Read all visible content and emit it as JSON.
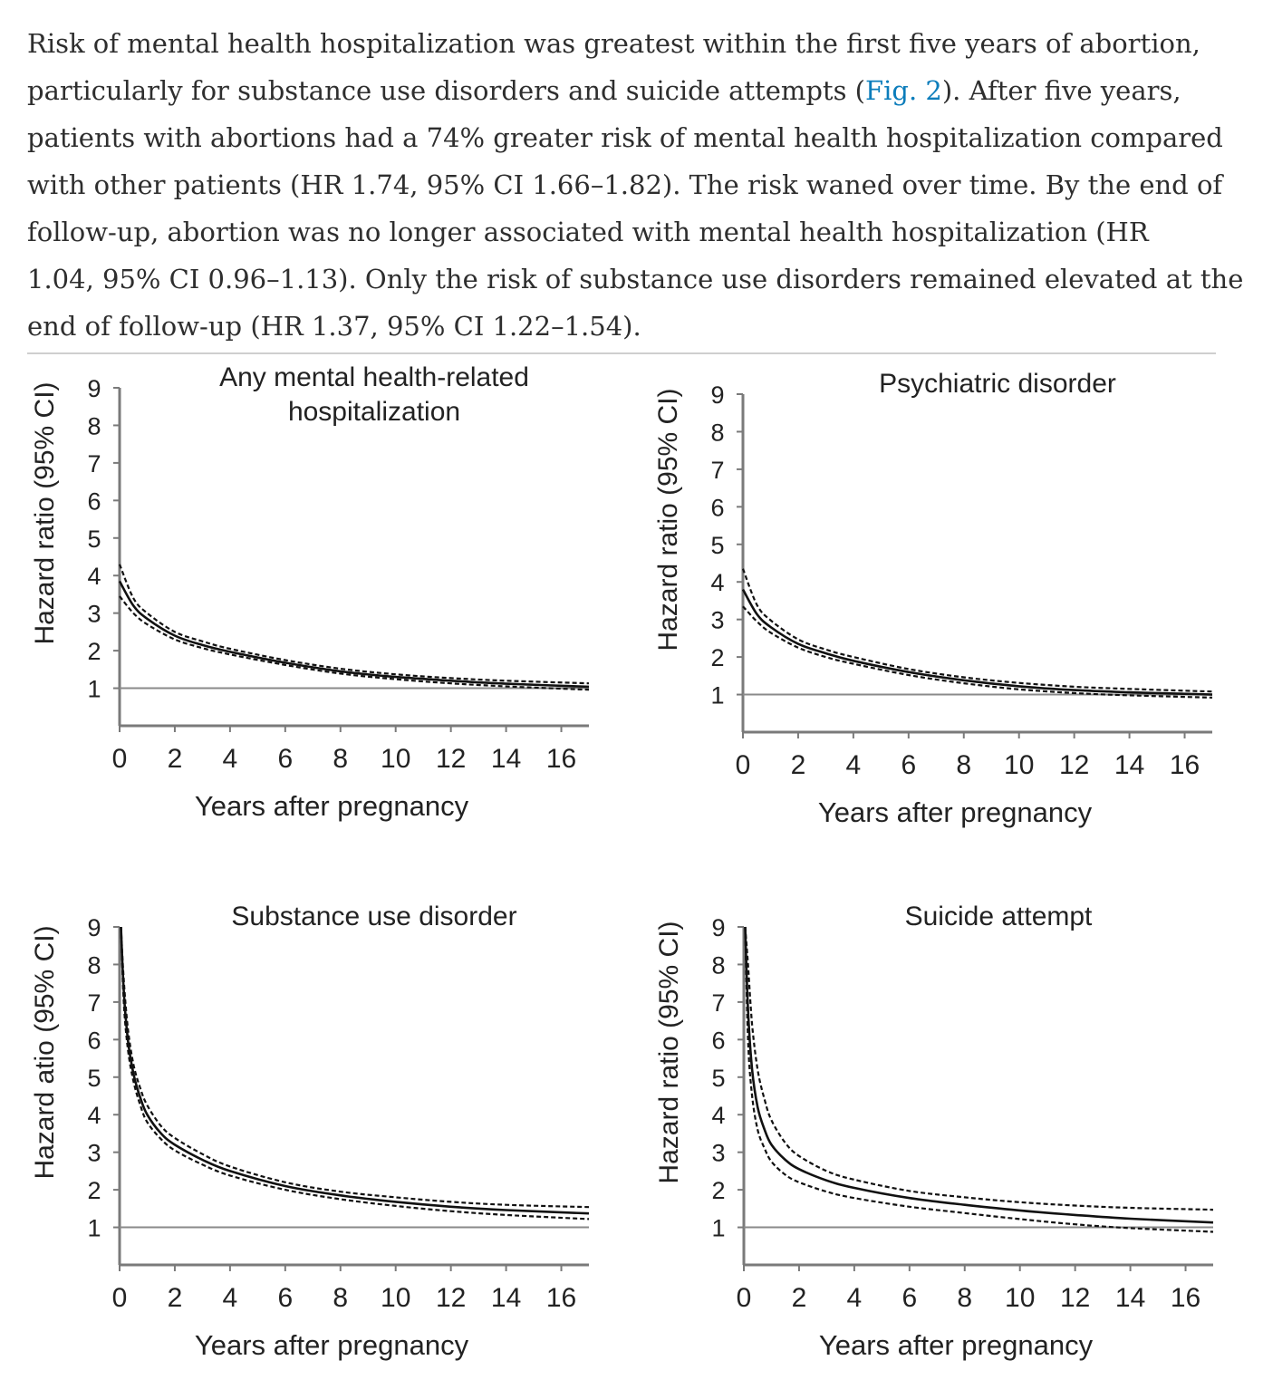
{
  "article": {
    "paragraph_lines": [
      "Risk of mental health hospitalization was greatest within the first five years of abortion,",
      "particularly for substance use disorders and suicide attempts (",
      "). After five years,",
      "patients with abortions had a 74% greater risk of mental health hospitalization compared",
      "with other patients (HR 1.74, 95% CI 1.66–1.82). The risk waned over time. By the end of",
      "follow-up, abortion was no longer associated with mental health hospitalization (HR",
      "1.04, 95% CI 0.96–1.13). Only the risk of substance use disorders remained elevated at the",
      "end of follow-up (HR 1.37, 95% CI 1.22–1.54)."
    ],
    "fig_link": "Fig. 2"
  },
  "chart_data": [
    {
      "type": "line",
      "title": "Any mental health-related hospitalization",
      "title_lines": [
        "Any mental health-related",
        "hospitalization"
      ],
      "xlabel": "Years after pregnancy",
      "ylabel": "Hazard ratio (95% CI)",
      "xlim": [
        0,
        17
      ],
      "ylim": [
        0,
        9
      ],
      "xticks": [
        0,
        2,
        4,
        6,
        8,
        10,
        12,
        14,
        16
      ],
      "yticks": [
        1,
        2,
        3,
        4,
        5,
        6,
        7,
        8,
        9
      ],
      "reference_line": 1,
      "series": [
        {
          "name": "HR",
          "style": "solid",
          "x": [
            0,
            0.5,
            1,
            2,
            3,
            4,
            6,
            8,
            10,
            12,
            14,
            17
          ],
          "y": [
            3.85,
            3.2,
            2.85,
            2.4,
            2.15,
            1.97,
            1.68,
            1.45,
            1.3,
            1.2,
            1.12,
            1.04
          ]
        },
        {
          "name": "Upper 95% CI",
          "style": "dashed",
          "x": [
            0,
            0.5,
            1,
            2,
            3,
            4,
            6,
            8,
            10,
            12,
            14,
            17
          ],
          "y": [
            4.3,
            3.4,
            3.0,
            2.5,
            2.25,
            2.05,
            1.75,
            1.52,
            1.37,
            1.27,
            1.2,
            1.13
          ]
        },
        {
          "name": "Lower 95% CI",
          "style": "dashed",
          "x": [
            0,
            0.5,
            1,
            2,
            3,
            4,
            6,
            8,
            10,
            12,
            14,
            17
          ],
          "y": [
            3.45,
            3.0,
            2.7,
            2.3,
            2.07,
            1.9,
            1.62,
            1.39,
            1.24,
            1.13,
            1.05,
            0.96
          ]
        }
      ]
    },
    {
      "type": "line",
      "title": "Psychiatric disorder",
      "title_lines": [
        "Psychiatric disorder"
      ],
      "xlabel": "Years after pregnancy",
      "ylabel": "Hazard ratio (95% CI)",
      "xlim": [
        0,
        17
      ],
      "ylim": [
        0,
        9
      ],
      "xticks": [
        0,
        2,
        4,
        6,
        8,
        10,
        12,
        14,
        16
      ],
      "yticks": [
        1,
        2,
        3,
        4,
        5,
        6,
        7,
        8,
        9
      ],
      "reference_line": 1,
      "series": [
        {
          "name": "HR",
          "style": "solid",
          "x": [
            0,
            0.5,
            1,
            2,
            3,
            4,
            6,
            8,
            10,
            12,
            14,
            17
          ],
          "y": [
            3.8,
            3.15,
            2.8,
            2.35,
            2.1,
            1.9,
            1.6,
            1.38,
            1.22,
            1.12,
            1.06,
            1.0
          ]
        },
        {
          "name": "Upper 95% CI",
          "style": "dashed",
          "x": [
            0,
            0.5,
            1,
            2,
            3,
            4,
            6,
            8,
            10,
            12,
            14,
            17
          ],
          "y": [
            4.35,
            3.4,
            2.98,
            2.47,
            2.2,
            2.0,
            1.68,
            1.46,
            1.31,
            1.21,
            1.15,
            1.08
          ]
        },
        {
          "name": "Lower 95% CI",
          "style": "dashed",
          "x": [
            0,
            0.5,
            1,
            2,
            3,
            4,
            6,
            8,
            10,
            12,
            14,
            17
          ],
          "y": [
            3.35,
            2.95,
            2.65,
            2.25,
            2.0,
            1.82,
            1.52,
            1.3,
            1.14,
            1.04,
            0.98,
            0.92
          ]
        }
      ]
    },
    {
      "type": "line",
      "title": "Substance use disorder",
      "title_lines": [
        "Substance use disorder"
      ],
      "xlabel": "Years after pregnancy",
      "ylabel": "Hazard atio (95% CI)",
      "xlim": [
        0,
        17
      ],
      "ylim": [
        0,
        9
      ],
      "xticks": [
        0,
        2,
        4,
        6,
        8,
        10,
        12,
        14,
        16
      ],
      "yticks": [
        1,
        2,
        3,
        4,
        5,
        6,
        7,
        8,
        9
      ],
      "reference_line": 1,
      "series": [
        {
          "name": "HR",
          "style": "solid",
          "x": [
            0.05,
            0.15,
            0.3,
            0.5,
            0.75,
            1,
            1.5,
            2,
            3,
            4,
            6,
            8,
            10,
            12,
            14,
            17
          ],
          "y": [
            9,
            7.3,
            6.0,
            5.1,
            4.45,
            4.0,
            3.5,
            3.2,
            2.8,
            2.5,
            2.1,
            1.85,
            1.68,
            1.55,
            1.46,
            1.37
          ]
        },
        {
          "name": "Upper 95% CI",
          "style": "dashed",
          "x": [
            0.05,
            0.15,
            0.3,
            0.5,
            0.75,
            1,
            1.5,
            2,
            3,
            4,
            6,
            8,
            10,
            12,
            14,
            17
          ],
          "y": [
            9,
            7.6,
            6.3,
            5.35,
            4.7,
            4.25,
            3.7,
            3.38,
            2.95,
            2.62,
            2.2,
            1.95,
            1.8,
            1.68,
            1.6,
            1.54
          ]
        },
        {
          "name": "Lower 95% CI",
          "style": "dashed",
          "x": [
            0.05,
            0.15,
            0.3,
            0.5,
            0.75,
            1,
            1.5,
            2,
            3,
            4,
            6,
            8,
            10,
            12,
            14,
            17
          ],
          "y": [
            9,
            7.0,
            5.75,
            4.9,
            4.25,
            3.8,
            3.35,
            3.05,
            2.67,
            2.38,
            2.0,
            1.75,
            1.57,
            1.43,
            1.33,
            1.22
          ]
        }
      ]
    },
    {
      "type": "line",
      "title": "Suicide attempt",
      "title_lines": [
        "Suicide attempt"
      ],
      "xlabel": "Years after pregnancy",
      "ylabel": "Hazard ratio (95% CI)",
      "xlim": [
        0,
        17
      ],
      "ylim": [
        0,
        9
      ],
      "xticks": [
        0,
        2,
        4,
        6,
        8,
        10,
        12,
        14,
        16
      ],
      "yticks": [
        1,
        2,
        3,
        4,
        5,
        6,
        7,
        8,
        9
      ],
      "reference_line": 1,
      "series": [
        {
          "name": "HR",
          "style": "solid",
          "x": [
            0.05,
            0.15,
            0.3,
            0.5,
            0.75,
            1,
            1.5,
            2,
            3,
            4,
            6,
            8,
            10,
            12,
            14,
            17
          ],
          "y": [
            9,
            6.8,
            5.2,
            4.2,
            3.6,
            3.2,
            2.8,
            2.55,
            2.25,
            2.05,
            1.78,
            1.6,
            1.45,
            1.33,
            1.23,
            1.13
          ]
        },
        {
          "name": "Upper 95% CI",
          "style": "dashed",
          "x": [
            0.05,
            0.15,
            0.3,
            0.5,
            0.75,
            1,
            1.5,
            2,
            3,
            4,
            6,
            8,
            10,
            12,
            14,
            17
          ],
          "y": [
            9,
            8.0,
            6.4,
            5.2,
            4.4,
            3.85,
            3.25,
            2.9,
            2.5,
            2.27,
            1.97,
            1.8,
            1.67,
            1.58,
            1.52,
            1.47
          ]
        },
        {
          "name": "Lower 95% CI",
          "style": "dashed",
          "x": [
            0.05,
            0.15,
            0.3,
            0.5,
            0.75,
            1,
            1.5,
            2,
            3,
            4,
            6,
            8,
            10,
            12,
            14,
            17
          ],
          "y": [
            9,
            6.0,
            4.5,
            3.6,
            3.1,
            2.75,
            2.4,
            2.2,
            1.95,
            1.78,
            1.55,
            1.38,
            1.22,
            1.08,
            0.98,
            0.88
          ]
        }
      ]
    }
  ]
}
